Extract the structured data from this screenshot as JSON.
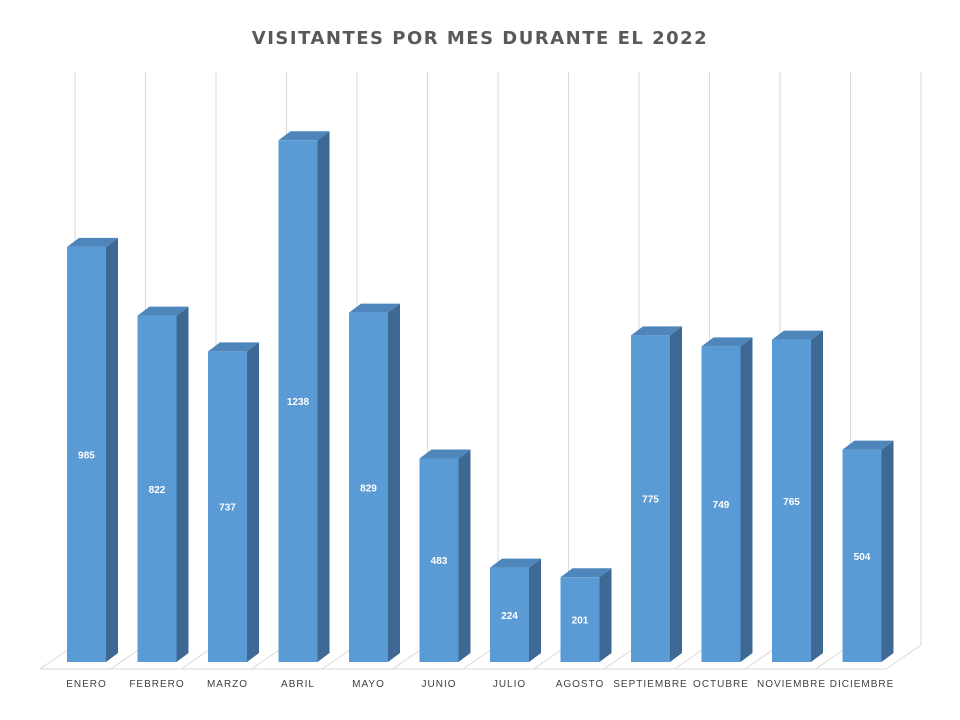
{
  "chart_data": {
    "type": "bar",
    "title": "VISITANTES POR MES DURANTE EL 2022",
    "categories": [
      "ENERO",
      "FEBRERO",
      "MARZO",
      "ABRIL",
      "MAYO",
      "JUNIO",
      "JULIO",
      "AGOSTO",
      "SEPTIEMBRE",
      "OCTUBRE",
      "NOVIEMBRE",
      "DICIEMBRE"
    ],
    "series": [
      {
        "values": [
          985,
          822,
          737,
          1238,
          829,
          483,
          224,
          201,
          775,
          749,
          765,
          504
        ]
      }
    ],
    "xlabel": "",
    "ylabel": "",
    "ylim": [
      0,
      1400
    ],
    "grid": true,
    "data_labels": true,
    "colors": {
      "front": "#5b9bd5",
      "side": "#3d6994",
      "top": "#4e86bb",
      "grid": "#d9d9d9",
      "label": "#ffffff",
      "tick": "#404040"
    }
  }
}
